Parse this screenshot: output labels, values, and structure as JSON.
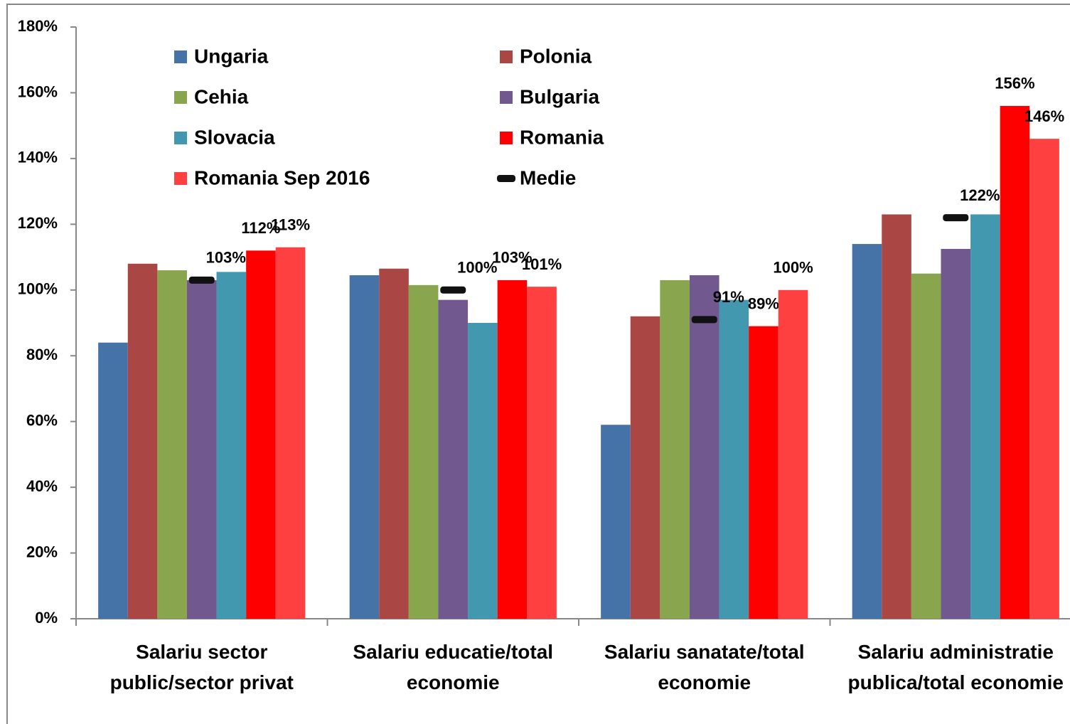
{
  "chart_data": {
    "type": "bar",
    "categories": [
      "Salariu sector public/sector privat",
      "Salariu educatie/total economie",
      "Salariu sanatate/total economie",
      "Salariu administratie publica/total economie"
    ],
    "series": [
      {
        "name": "Ungaria",
        "color": "#4572a7",
        "values": [
          84,
          104.5,
          59,
          114
        ]
      },
      {
        "name": "Polonia",
        "color": "#aa4643",
        "values": [
          108,
          106.5,
          92,
          123
        ]
      },
      {
        "name": "Cehia",
        "color": "#89a54e",
        "values": [
          106,
          101.5,
          103,
          105
        ]
      },
      {
        "name": "Bulgaria",
        "color": "#71588f",
        "values": [
          103,
          97,
          104.5,
          112.5
        ]
      },
      {
        "name": "Slovacia",
        "color": "#4198af",
        "values": [
          105.5,
          90,
          97,
          123
        ]
      },
      {
        "name": "Romania",
        "color": "#ff0000",
        "values": [
          112,
          103,
          89,
          156
        ],
        "value_labels": [
          "112%",
          "103%",
          "89%",
          "156%"
        ]
      },
      {
        "name": "Romania Sep 2016",
        "color": "#ff4040",
        "values": [
          113,
          101,
          100,
          146
        ],
        "value_labels": [
          "113%",
          "101%",
          "100%",
          "146%"
        ]
      },
      {
        "name": "Medie",
        "color": "#111111",
        "marker": "dash",
        "values": [
          103,
          100,
          91,
          122
        ],
        "value_labels": [
          "103%",
          "100%",
          "91%",
          "122%"
        ]
      }
    ],
    "ylim": [
      0,
      180
    ],
    "yticks": [
      {
        "value": 0,
        "label": "0%"
      },
      {
        "value": 20,
        "label": "20%"
      },
      {
        "value": 40,
        "label": "40%"
      },
      {
        "value": 60,
        "label": "60%"
      },
      {
        "value": 80,
        "label": "80%"
      },
      {
        "value": 100,
        "label": "100%"
      },
      {
        "value": 120,
        "label": "120%"
      },
      {
        "value": 140,
        "label": "140%"
      },
      {
        "value": 160,
        "label": "160%"
      },
      {
        "value": 180,
        "label": "180%"
      }
    ],
    "grid": false
  }
}
